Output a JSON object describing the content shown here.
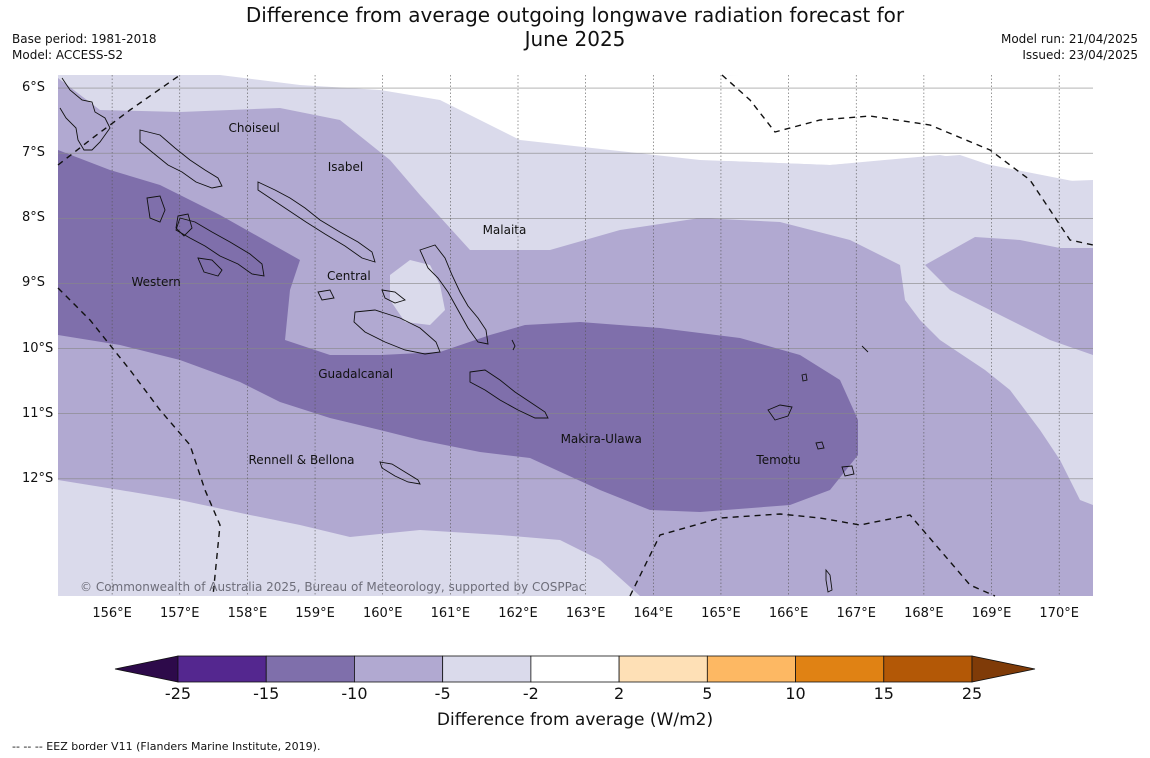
{
  "title": {
    "line1": "Difference from average outgoing longwave radiation forecast for",
    "line2": "June 2025"
  },
  "meta": {
    "base_period": "Base period: 1981-2018",
    "model": "Model: ACCESS-S2",
    "model_run": "Model run: 21/04/2025",
    "issued": "Issued: 23/04/2025"
  },
  "map": {
    "lat_labels": [
      "6°S",
      "7°S",
      "8°S",
      "9°S",
      "10°S",
      "11°S",
      "12°S"
    ],
    "lon_labels": [
      "156°E",
      "157°E",
      "158°E",
      "159°E",
      "160°E",
      "161°E",
      "162°E",
      "163°E",
      "164°E",
      "165°E",
      "166°E",
      "167°E",
      "168°E",
      "169°E",
      "170°E"
    ],
    "lon_range": [
      155.2,
      170.5
    ],
    "lat_range": [
      -5.8,
      -13.8
    ],
    "places": [
      {
        "name": "Choiseul",
        "lon": 158.1,
        "lat": -6.63
      },
      {
        "name": "Isabel",
        "lon": 159.45,
        "lat": -7.23
      },
      {
        "name": "Malaita",
        "lon": 161.8,
        "lat": -8.2
      },
      {
        "name": "Central",
        "lon": 159.5,
        "lat": -8.9
      },
      {
        "name": "Western",
        "lon": 156.65,
        "lat": -9.0
      },
      {
        "name": "Guadalcanal",
        "lon": 159.6,
        "lat": -10.4
      },
      {
        "name": "Makira-Ulawa",
        "lon": 163.23,
        "lat": -11.4
      },
      {
        "name": "Temotu",
        "lon": 165.85,
        "lat": -11.72
      },
      {
        "name": "Rennell & Bellona",
        "lon": 158.8,
        "lat": -11.72
      }
    ],
    "copyright": "© Commonwealth of Australia 2025, Bureau of Meteorology, supported by COSPPac"
  },
  "colorbar": {
    "ticks": [
      "-25",
      "-15",
      "-10",
      "-5",
      "-2",
      "2",
      "5",
      "10",
      "15",
      "25"
    ],
    "colors": [
      "#2d0a4a",
      "#54278f",
      "#7f6fab",
      "#b1a9d1",
      "#dadaeb",
      "#ffffff",
      "#fee0b6",
      "#fdb863",
      "#e08214",
      "#b35806",
      "#7f3b08"
    ],
    "label": "Difference from average (W/m2)"
  },
  "legend_note": "--  --  -- EEZ border V11 (Flanders Marine Institute, 2019)."
}
